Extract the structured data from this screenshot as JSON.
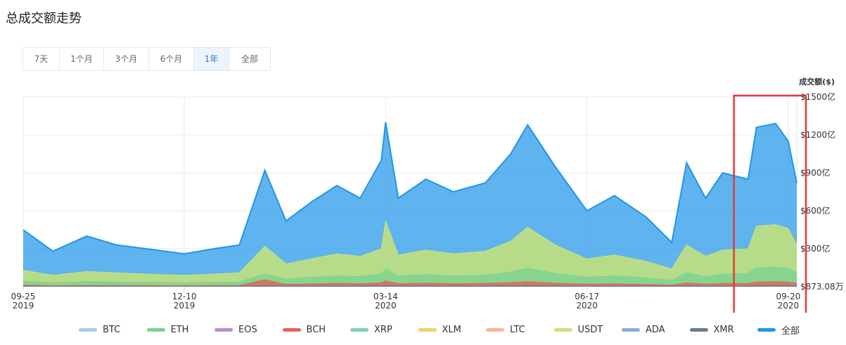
{
  "page": {
    "title": "总成交额走势"
  },
  "tabs": [
    {
      "label": "7天",
      "active": false
    },
    {
      "label": "1个月",
      "active": false
    },
    {
      "label": "3个月",
      "active": false
    },
    {
      "label": "6个月",
      "active": false
    },
    {
      "label": "1年",
      "active": true
    },
    {
      "label": "全部",
      "active": false
    }
  ],
  "highlight_color": "#e53935",
  "chart_data": {
    "type": "area",
    "ylabel": "成交额($)",
    "ylim": [
      38730800,
      150000000000
    ],
    "y_ticks": [
      "$873.08万",
      "$300亿",
      "$600亿",
      "$900亿",
      "$1200亿",
      "$1500亿"
    ],
    "x_ticks": [
      {
        "date": "09-25",
        "year": "2019"
      },
      {
        "date": "12-10",
        "year": "2019"
      },
      {
        "date": "03-14",
        "year": "2020"
      },
      {
        "date": "06-17",
        "year": "2020"
      },
      {
        "date": "09-20",
        "year": "2020"
      }
    ],
    "grid": true,
    "legend_position": "bottom",
    "dates": [
      "2019-09-25",
      "2019-10-09",
      "2019-10-25",
      "2019-11-08",
      "2019-11-22",
      "2019-12-10",
      "2019-12-24",
      "2020-01-05",
      "2020-01-17",
      "2020-01-27",
      "2020-02-08",
      "2020-02-20",
      "2020-03-02",
      "2020-03-12",
      "2020-03-14",
      "2020-03-20",
      "2020-04-02",
      "2020-04-15",
      "2020-04-30",
      "2020-05-12",
      "2020-05-20",
      "2020-06-02",
      "2020-06-17",
      "2020-06-30",
      "2020-07-15",
      "2020-07-27",
      "2020-08-03",
      "2020-08-12",
      "2020-08-20",
      "2020-09-01",
      "2020-09-05",
      "2020-09-14",
      "2020-09-20",
      "2020-09-24"
    ],
    "series": [
      {
        "name": "全部",
        "color": "#2196e8",
        "values": [
          450,
          280,
          400,
          330,
          300,
          260,
          300,
          330,
          920,
          520,
          670,
          800,
          700,
          1000,
          1300,
          700,
          850,
          750,
          820,
          1050,
          1280,
          950,
          600,
          720,
          550,
          350,
          980,
          700,
          900,
          850,
          1260,
          1290,
          1150,
          820
        ]
      },
      {
        "name": "USDT",
        "color": "#c6e377",
        "values": [
          130,
          90,
          120,
          110,
          100,
          90,
          100,
          110,
          320,
          180,
          220,
          260,
          240,
          300,
          520,
          250,
          290,
          260,
          280,
          360,
          470,
          330,
          220,
          250,
          200,
          140,
          330,
          240,
          290,
          300,
          480,
          490,
          460,
          330
        ]
      },
      {
        "name": "ETH",
        "color": "#7ed38f",
        "values": [
          45,
          30,
          40,
          38,
          34,
          30,
          34,
          38,
          100,
          60,
          75,
          85,
          80,
          100,
          140,
          85,
          95,
          85,
          90,
          115,
          145,
          105,
          75,
          85,
          70,
          50,
          110,
          80,
          100,
          105,
          150,
          155,
          145,
          110
        ]
      },
      {
        "name": "BCH",
        "color": "#e0665f",
        "values": [
          12,
          8,
          10,
          10,
          9,
          8,
          9,
          10,
          55,
          18,
          22,
          26,
          24,
          30,
          45,
          24,
          28,
          24,
          26,
          32,
          40,
          28,
          20,
          22,
          18,
          12,
          30,
          20,
          26,
          25,
          38,
          40,
          36,
          28
        ]
      },
      {
        "name": "XMR",
        "color": "#6b7d8c",
        "values": [
          4,
          3,
          4,
          4,
          3,
          3,
          3,
          4,
          8,
          5,
          6,
          7,
          6,
          7,
          10,
          6,
          7,
          6,
          6,
          8,
          10,
          7,
          5,
          6,
          5,
          4,
          7,
          5,
          6,
          6,
          9,
          9,
          8,
          6
        ]
      }
    ],
    "legend": [
      {
        "name": "BTC",
        "color": "#a8cbea"
      },
      {
        "name": "ETH",
        "color": "#7ed38f"
      },
      {
        "name": "EOS",
        "color": "#b98fcc"
      },
      {
        "name": "BCH",
        "color": "#e0665f"
      },
      {
        "name": "XRP",
        "color": "#7fd1b9"
      },
      {
        "name": "XLM",
        "color": "#f0d36a"
      },
      {
        "name": "LTC",
        "color": "#f5b89a"
      },
      {
        "name": "USDT",
        "color": "#c6e377"
      },
      {
        "name": "ADA",
        "color": "#8fa9dd"
      },
      {
        "name": "XMR",
        "color": "#6b7d8c"
      },
      {
        "name": "全部",
        "color": "#2196e8"
      }
    ]
  }
}
